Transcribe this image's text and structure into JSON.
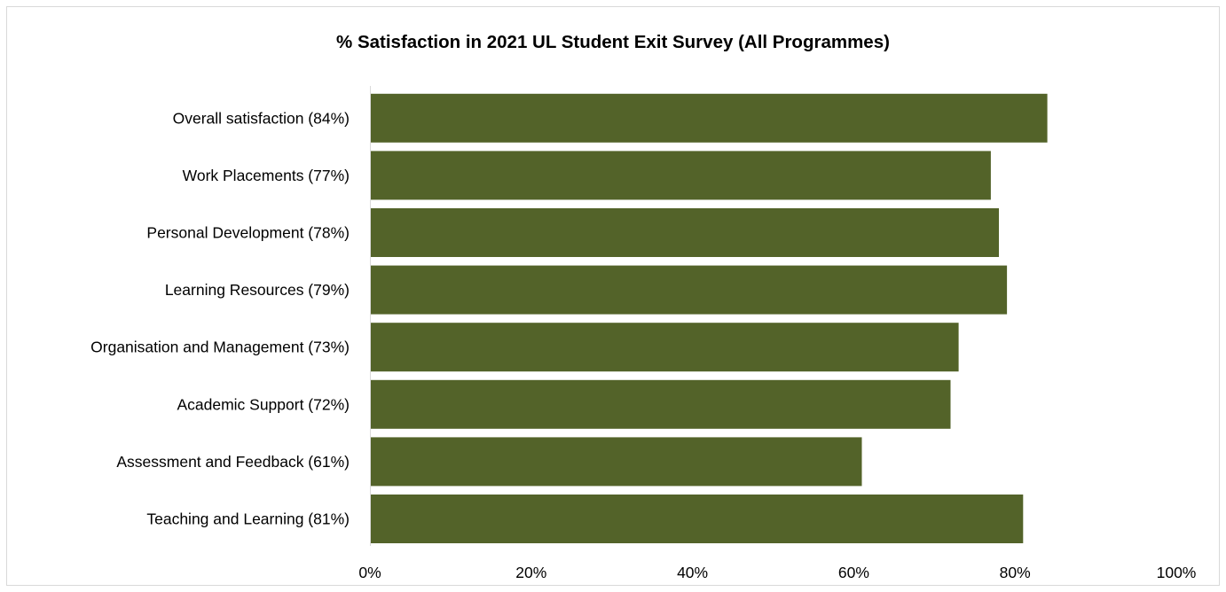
{
  "chart_data": {
    "type": "bar",
    "orientation": "horizontal",
    "title": "% Satisfaction in 2021 UL Student Exit Survey (All Programmes)",
    "categories": [
      "Overall satisfaction  (84%)",
      "Work Placements (77%)",
      "Personal Development  (78%)",
      "Learning Resources  (79%)",
      "Organisation and Management  (73%)",
      "Academic Support  (72%)",
      "Assessment and Feedback  (61%)",
      "Teaching and Learning  (81%)"
    ],
    "values": [
      84,
      77,
      78,
      79,
      73,
      72,
      61,
      81
    ],
    "xlim": [
      0,
      100
    ],
    "xticks": [
      "0%",
      "20%",
      "40%",
      "60%",
      "80%",
      "100%"
    ],
    "grid": false,
    "bar_color": "#536329"
  }
}
